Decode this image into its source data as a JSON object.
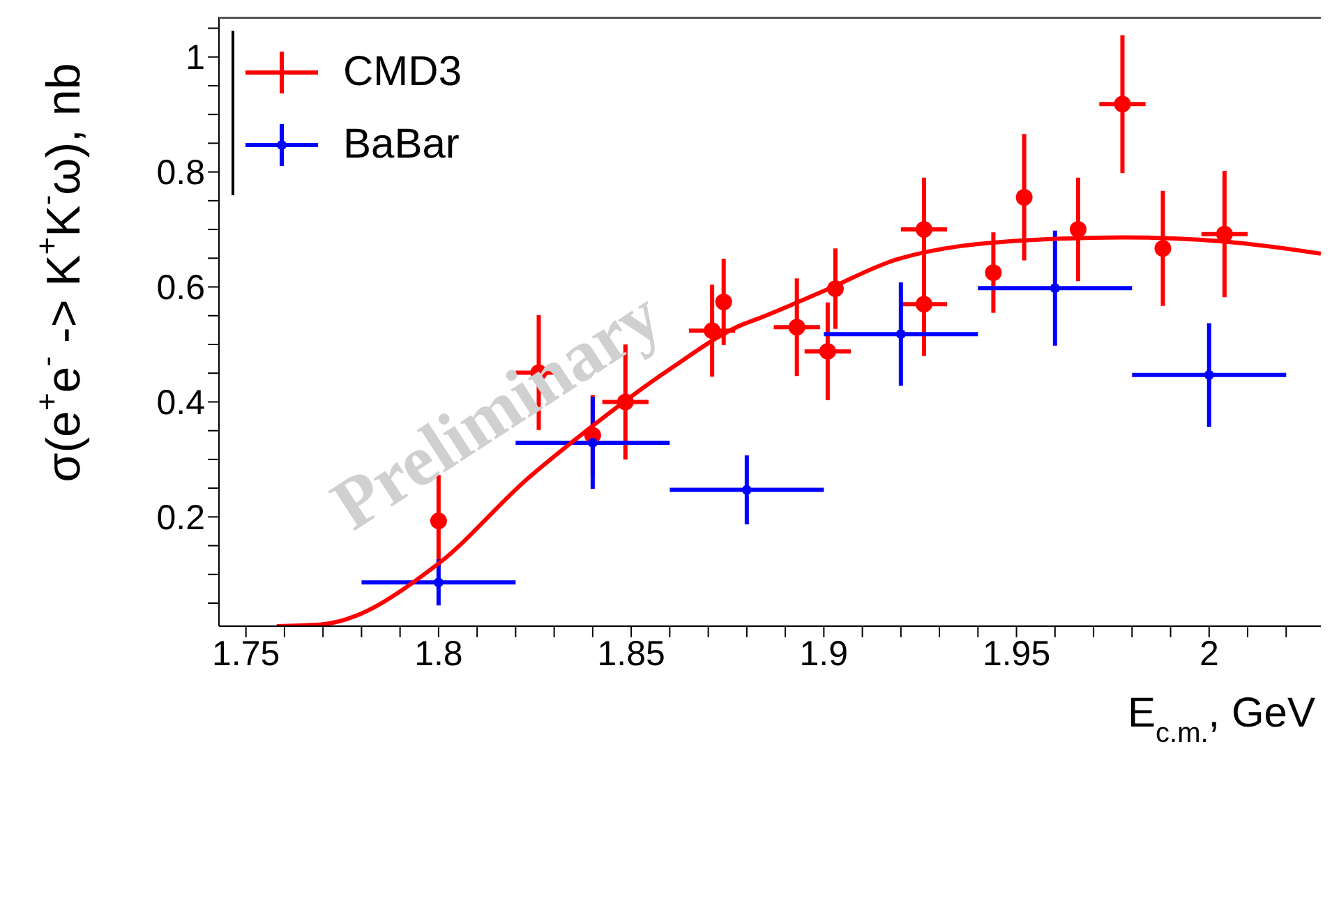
{
  "chart_data": {
    "type": "scatter",
    "xlabel": "E$_{c.m.}$, GeV",
    "ylabel": "σ(e$^{+}$e$^{-}$ -> K$^{+}$K$^{-}$ω), nb",
    "annotations": [
      "Preliminary"
    ],
    "xlim": [
      1.743,
      2.029
    ],
    "xticks": [
      1.75,
      {
        "value": 1.76,
        "label": null
      },
      {
        "value": 1.77,
        "label": null
      },
      {
        "value": 1.78,
        "label": null
      },
      {
        "value": 1.79,
        "label": null
      },
      1.8,
      {
        "value": 1.81,
        "label": null
      },
      {
        "value": 1.82,
        "label": null
      },
      {
        "value": 1.83,
        "label": null
      },
      {
        "value": 1.84,
        "label": null
      },
      1.85,
      {
        "value": 1.86,
        "label": null
      },
      {
        "value": 1.87,
        "label": null
      },
      {
        "value": 1.88,
        "label": null
      },
      {
        "value": 1.89,
        "label": null
      },
      1.9,
      {
        "value": 1.91,
        "label": null
      },
      {
        "value": 1.92,
        "label": null
      },
      {
        "value": 1.93,
        "label": null
      },
      {
        "value": 1.94,
        "label": null
      },
      1.95,
      {
        "value": 1.96,
        "label": null
      },
      {
        "value": 1.97,
        "label": null
      },
      {
        "value": 1.98,
        "label": null
      },
      {
        "value": 1.99,
        "label": null
      },
      2,
      {
        "value": 2.01,
        "label": null
      },
      {
        "value": 2.02,
        "label": null
      }
    ],
    "ylim": [
      0.01,
      1.07
    ],
    "yticks": [
      {
        "value": 0.05,
        "label": null
      },
      {
        "value": 0.1,
        "label": null
      },
      {
        "value": 0.15,
        "label": null
      },
      0.2,
      {
        "value": 0.25,
        "label": null
      },
      {
        "value": 0.3,
        "label": null
      },
      {
        "value": 0.35,
        "label": null
      },
      0.4,
      {
        "value": 0.45,
        "label": null
      },
      {
        "value": 0.5,
        "label": null
      },
      {
        "value": 0.55,
        "label": null
      },
      0.6,
      {
        "value": 0.65,
        "label": null
      },
      {
        "value": 0.7,
        "label": null
      },
      {
        "value": 0.75,
        "label": null
      },
      0.8,
      {
        "value": 0.85,
        "label": null
      },
      {
        "value": 0.9,
        "label": null
      },
      {
        "value": 0.95,
        "label": null
      },
      1,
      {
        "value": 1.05,
        "label": null
      }
    ],
    "legend": "top left",
    "series": [
      {
        "name": "CMD3",
        "marker": "circle",
        "color": "#ff0000",
        "x": [
          1.8,
          1.826,
          1.84,
          1.8485,
          1.871,
          1.874,
          1.893,
          1.901,
          1.903,
          1.926,
          1.926,
          1.944,
          1.952,
          1.966,
          1.9775,
          1.988,
          2.004
        ],
        "values": [
          0.193,
          0.451,
          0.342,
          0.4,
          0.524,
          0.574,
          0.53,
          0.488,
          0.597,
          0.7,
          0.57,
          0.625,
          0.756,
          0.7,
          0.918,
          0.667,
          0.692
        ],
        "errors": [
          0.08,
          0.1,
          0.07,
          0.1,
          0.08,
          0.075,
          0.085,
          0.085,
          0.07,
          0.09,
          0.09,
          0.07,
          0.11,
          0.09,
          0.12,
          0.1,
          0.11
        ],
        "xerrors": [
          null,
          0.006,
          null,
          0.006,
          0.006,
          null,
          0.006,
          0.006,
          null,
          0.006,
          0.006,
          null,
          null,
          null,
          0.006,
          null,
          0.006
        ]
      },
      {
        "name": "BaBar",
        "marker": "circle",
        "color": "#0000ff",
        "x": [
          1.8,
          1.84,
          1.88,
          1.92,
          1.96,
          2.0
        ],
        "values": [
          0.086,
          0.329,
          0.247,
          0.518,
          0.598,
          0.447
        ],
        "errors": [
          0.04,
          0.08,
          0.06,
          0.09,
          0.1,
          0.09
        ],
        "xerrors": [
          0.02,
          0.02,
          0.02,
          0.02,
          0.02,
          0.02
        ]
      },
      {
        "type": "line",
        "marker": "none",
        "line_style": "solid",
        "color": "#ff0000",
        "x": [
          1.758,
          1.7696,
          1.8,
          1.823,
          1.838,
          1.86,
          1.879,
          1.883,
          1.9,
          1.919,
          1.952,
          1.9775,
          2.004,
          2.029
        ],
        "values": [
          0.01,
          0.013,
          0.119,
          0.266,
          0.348,
          0.457,
          0.535,
          0.545,
          0.593,
          0.648,
          0.681,
          0.686,
          0.679,
          0.658
        ]
      }
    ]
  }
}
